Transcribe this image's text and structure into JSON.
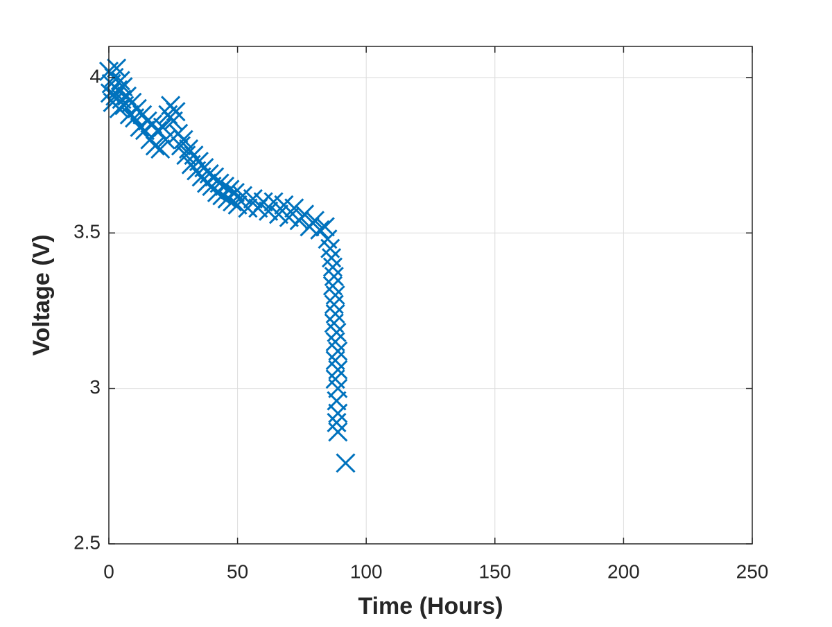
{
  "chart_data": {
    "type": "scatter",
    "xlabel": "Time (Hours)",
    "ylabel": "Voltage (V)",
    "xlim": [
      0,
      250
    ],
    "ylim": [
      2.5,
      4.1
    ],
    "xticks": [
      0,
      50,
      100,
      150,
      200,
      250
    ],
    "yticks": [
      2.5,
      3,
      3.5,
      4
    ],
    "grid": true,
    "marker": "x",
    "color": "#0072bd",
    "x": [
      0,
      0.5,
      1,
      1.5,
      2,
      2.5,
      3,
      3.5,
      4,
      4.5,
      5,
      5.5,
      6,
      7,
      8,
      9,
      10,
      11,
      12,
      13,
      14,
      15,
      16,
      17,
      18,
      19,
      20,
      21,
      22,
      23,
      24,
      25,
      26,
      27,
      28,
      29,
      30,
      31,
      32,
      33,
      34,
      35,
      36,
      37,
      38,
      39,
      40,
      41,
      42,
      43,
      44,
      45,
      46,
      47,
      48,
      49,
      50,
      52,
      54,
      56,
      58,
      60,
      62,
      64,
      66,
      68,
      70,
      72,
      74,
      76,
      78,
      80,
      82,
      84,
      85,
      86,
      86.5,
      87,
      87.5,
      87,
      88,
      87.5,
      88,
      87.5,
      88.5,
      88,
      89,
      88,
      89,
      88,
      89,
      88.5,
      89,
      88.5,
      89,
      92
    ],
    "values": [
      4.02,
      3.95,
      3.98,
      3.92,
      4.0,
      3.94,
      4.03,
      3.96,
      3.9,
      3.99,
      3.93,
      3.97,
      3.91,
      3.94,
      3.88,
      3.92,
      3.87,
      3.9,
      3.84,
      3.88,
      3.83,
      3.86,
      3.8,
      3.85,
      3.78,
      3.83,
      3.77,
      3.84,
      3.8,
      3.88,
      3.91,
      3.86,
      3.89,
      3.82,
      3.78,
      3.8,
      3.75,
      3.77,
      3.72,
      3.75,
      3.7,
      3.73,
      3.68,
      3.71,
      3.66,
      3.69,
      3.65,
      3.68,
      3.63,
      3.66,
      3.62,
      3.65,
      3.61,
      3.64,
      3.6,
      3.63,
      3.59,
      3.62,
      3.58,
      3.61,
      3.58,
      3.6,
      3.57,
      3.6,
      3.56,
      3.59,
      3.55,
      3.58,
      3.54,
      3.56,
      3.52,
      3.54,
      3.51,
      3.52,
      3.48,
      3.45,
      3.42,
      3.39,
      3.36,
      3.33,
      3.3,
      3.27,
      3.24,
      3.21,
      3.18,
      3.15,
      3.12,
      3.09,
      3.06,
      3.03,
      3.0,
      2.96,
      2.92,
      2.89,
      2.86,
      2.76
    ]
  }
}
